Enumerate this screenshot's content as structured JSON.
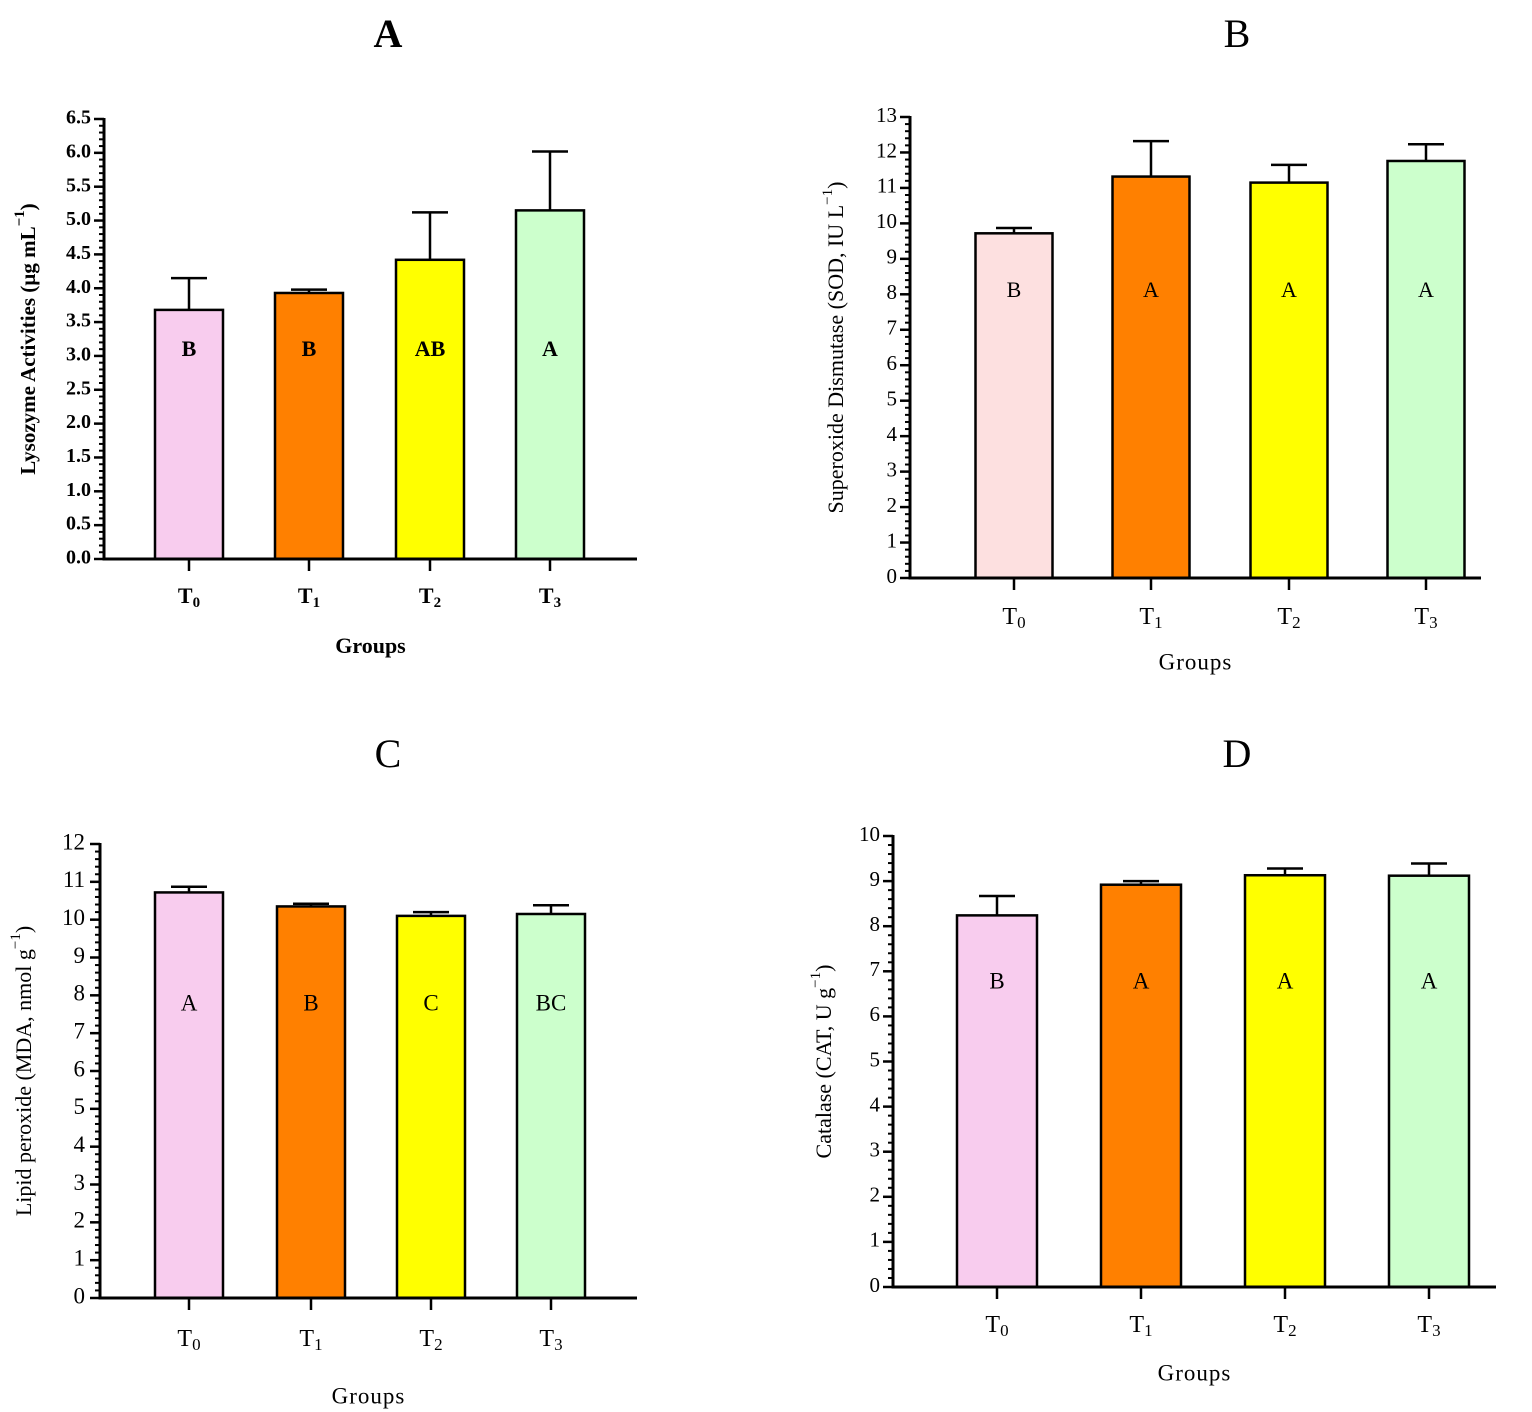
{
  "chart_data": [
    {
      "panel_label": "A",
      "type": "bar",
      "categories": [
        {
          "base": "T",
          "sub": "0"
        },
        {
          "base": "T",
          "sub": "1"
        },
        {
          "base": "T",
          "sub": "2"
        },
        {
          "base": "T",
          "sub": "3"
        }
      ],
      "values": [
        3.68,
        3.93,
        4.42,
        5.15
      ],
      "errors": [
        0.47,
        0.05,
        0.7,
        0.87
      ],
      "letters": [
        "B",
        "B",
        "AB",
        "A"
      ],
      "colors": [
        "#f8ccee",
        "#ff8000",
        "#ffff00",
        "#ccffcc"
      ],
      "xlabel": "Groups",
      "ylabel": {
        "text": "Lysozyme Activities (µg mL",
        "sup": "−1",
        "close": ")"
      },
      "ylim": [
        0,
        6.5
      ],
      "yticks": [
        "0.0",
        "0.5",
        "1.0",
        "1.5",
        "2.0",
        "2.5",
        "3.0",
        "3.5",
        "4.0",
        "4.5",
        "5.0",
        "5.5",
        "6.0",
        "6.5"
      ],
      "bold": true
    },
    {
      "panel_label": "B",
      "type": "bar",
      "categories": [
        {
          "base": "T",
          "sub": "0"
        },
        {
          "base": "T",
          "sub": "1"
        },
        {
          "base": "T",
          "sub": "2"
        },
        {
          "base": "T",
          "sub": "3"
        }
      ],
      "values": [
        9.72,
        11.32,
        11.15,
        11.76
      ],
      "errors": [
        0.15,
        1.0,
        0.5,
        0.47
      ],
      "letters": [
        "B",
        "A",
        "A",
        "A"
      ],
      "colors": [
        "#fde0e0",
        "#ff8000",
        "#ffff00",
        "#ccffcc"
      ],
      "xlabel": "Groups",
      "ylabel": {
        "text": "Superoxide Dismutase (SOD, IU L",
        "sup": "−1",
        "close": ")"
      },
      "ylim": [
        0,
        13
      ],
      "yticks": [
        "0",
        "1",
        "2",
        "3",
        "4",
        "5",
        "6",
        "7",
        "8",
        "9",
        "10",
        "11",
        "12",
        "13"
      ],
      "bold": false
    },
    {
      "panel_label": "C",
      "type": "bar",
      "categories": [
        {
          "base": "T",
          "sub": "0"
        },
        {
          "base": "T",
          "sub": "1"
        },
        {
          "base": "T",
          "sub": "2"
        },
        {
          "base": "T",
          "sub": "3"
        }
      ],
      "values": [
        10.72,
        10.35,
        10.1,
        10.15
      ],
      "errors": [
        0.15,
        0.07,
        0.1,
        0.23
      ],
      "letters": [
        "A",
        "B",
        "C",
        "BC"
      ],
      "colors": [
        "#f8ccee",
        "#ff8000",
        "#ffff00",
        "#ccffcc"
      ],
      "xlabel": "Groups",
      "ylabel": {
        "text": "Lipid peroxide (MDA, nmol  g",
        "sup": "−1",
        "close": ")"
      },
      "ylim": [
        0,
        12
      ],
      "yticks": [
        "0",
        "1",
        "2",
        "3",
        "4",
        "5",
        "6",
        "7",
        "8",
        "9",
        "10",
        "11",
        "12"
      ],
      "bold": false
    },
    {
      "panel_label": "D",
      "type": "bar",
      "categories": [
        {
          "base": "T",
          "sub": "0"
        },
        {
          "base": "T",
          "sub": "1"
        },
        {
          "base": "T",
          "sub": "2"
        },
        {
          "base": "T",
          "sub": "3"
        }
      ],
      "values": [
        8.24,
        8.92,
        9.13,
        9.12
      ],
      "errors": [
        0.43,
        0.08,
        0.15,
        0.27
      ],
      "letters": [
        "B",
        "A",
        "A",
        "A"
      ],
      "colors": [
        "#f8ccee",
        "#ff8000",
        "#ffff00",
        "#ccffcc"
      ],
      "xlabel": "Groups",
      "ylabel": {
        "text": "Catalase (CAT, U g",
        "sup": "−1",
        "close": ")"
      },
      "ylim": [
        0,
        10
      ],
      "yticks": [
        "0",
        "1",
        "2",
        "3",
        "4",
        "5",
        "6",
        "7",
        "8",
        "9",
        "10"
      ],
      "bold": false
    }
  ]
}
